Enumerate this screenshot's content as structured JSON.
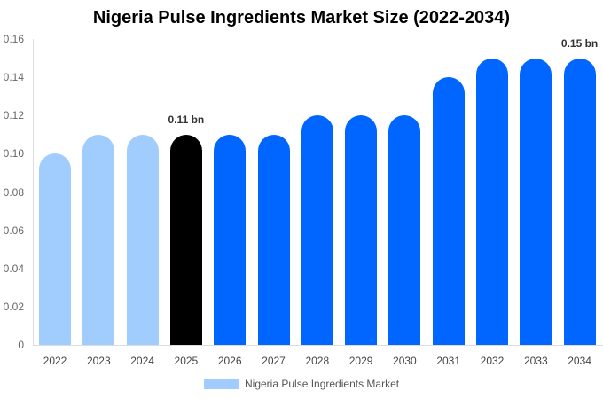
{
  "chart_data": {
    "type": "bar",
    "title": "Nigeria Pulse Ingredients Market Size (2022-2034)",
    "xlabel": "",
    "ylabel": "",
    "ylim": [
      0,
      0.16
    ],
    "yticks": [
      "0",
      "0.02",
      "0.04",
      "0.06",
      "0.08",
      "0.10",
      "0.12",
      "0.14",
      "0.16"
    ],
    "categories": [
      "2022",
      "2023",
      "2024",
      "2025",
      "2026",
      "2027",
      "2028",
      "2029",
      "2030",
      "2031",
      "2032",
      "2033",
      "2034"
    ],
    "series": [
      {
        "name": "Nigeria Pulse Ingredients Market",
        "values": [
          0.1,
          0.11,
          0.11,
          0.11,
          0.11,
          0.11,
          0.12,
          0.12,
          0.12,
          0.14,
          0.15,
          0.15,
          0.15
        ]
      }
    ],
    "bar_colors": [
      "#a0cdfd",
      "#a0cdfd",
      "#a0cdfd",
      "#000000",
      "#0066ff",
      "#0066ff",
      "#0066ff",
      "#0066ff",
      "#0066ff",
      "#0066ff",
      "#0066ff",
      "#0066ff",
      "#0066ff"
    ],
    "annotations": [
      {
        "category": "2025",
        "text": "0.11 bn"
      },
      {
        "category": "2034",
        "text": "0.15 bn"
      }
    ],
    "legend_position": "bottom",
    "grid": false
  }
}
